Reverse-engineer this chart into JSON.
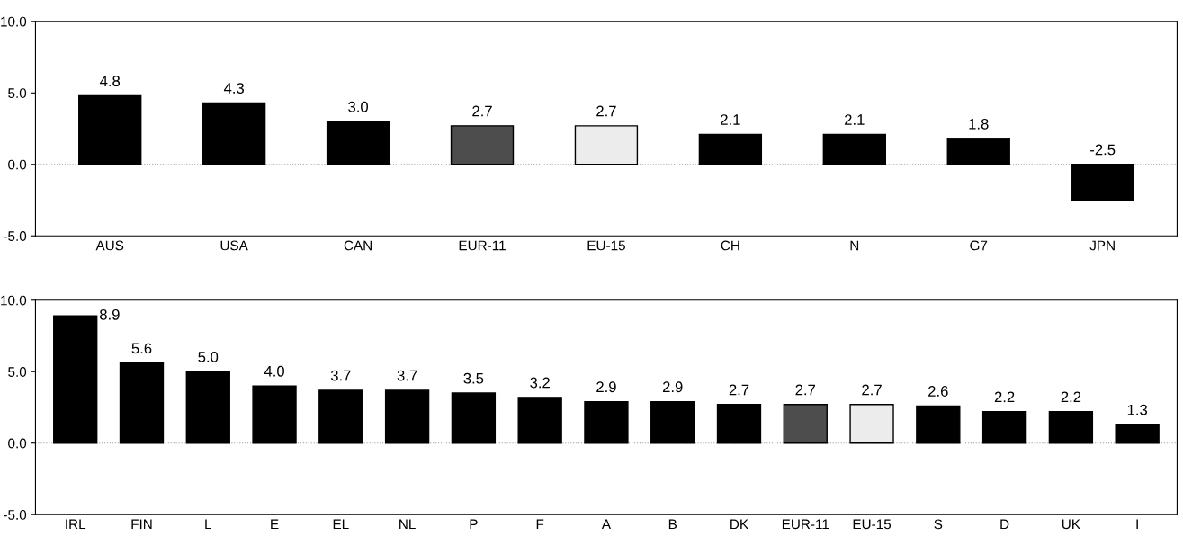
{
  "chart_data": [
    {
      "type": "bar",
      "categories": [
        "AUS",
        "USA",
        "CAN",
        "EUR-11",
        "EU-15",
        "CH",
        "N",
        "G7",
        "JPN"
      ],
      "values": [
        4.8,
        4.3,
        3.0,
        2.7,
        2.7,
        2.1,
        2.1,
        1.8,
        -2.5
      ],
      "colors": [
        "#000000",
        "#000000",
        "#000000",
        "#4d4d4d",
        "#ececec",
        "#000000",
        "#000000",
        "#000000",
        "#000000"
      ],
      "ylim": [
        -5,
        10
      ],
      "yticks": [
        {
          "value": -5,
          "label": "-5.0"
        },
        {
          "value": 0,
          "label": "0.0"
        },
        {
          "value": 5,
          "label": "5.0"
        },
        {
          "value": 10,
          "label": "10.0"
        }
      ],
      "value_labels": [
        "4.8",
        "4.3",
        "3.0",
        "2.7",
        "2.7",
        "2.1",
        "2.1",
        "1.8",
        "-2.5"
      ],
      "grid": false,
      "legend": false,
      "ref_lines": [
        {
          "axis": "y",
          "value": 0,
          "color": "#999999",
          "line_style": "dotted"
        }
      ]
    },
    {
      "type": "bar",
      "categories": [
        "IRL",
        "FIN",
        "L",
        "E",
        "EL",
        "NL",
        "P",
        "F",
        "A",
        "B",
        "DK",
        "EUR-11",
        "EU-15",
        "S",
        "D",
        "UK",
        "I"
      ],
      "values": [
        8.9,
        5.6,
        5.0,
        4.0,
        3.7,
        3.7,
        3.5,
        3.2,
        2.9,
        2.9,
        2.7,
        2.7,
        2.7,
        2.6,
        2.2,
        2.2,
        1.3
      ],
      "colors": [
        "#000000",
        "#000000",
        "#000000",
        "#000000",
        "#000000",
        "#000000",
        "#000000",
        "#000000",
        "#000000",
        "#000000",
        "#000000",
        "#4d4d4d",
        "#ececec",
        "#000000",
        "#000000",
        "#000000",
        "#000000"
      ],
      "ylim": [
        -5,
        10
      ],
      "yticks": [
        {
          "value": -5,
          "label": "-5.0"
        },
        {
          "value": 0,
          "label": "0.0"
        },
        {
          "value": 5,
          "label": "5.0"
        },
        {
          "value": 10,
          "label": "10.0"
        }
      ],
      "value_labels": [
        "8.9",
        "5.6",
        "5.0",
        "4.0",
        "3.7",
        "3.7",
        "3.5",
        "3.2",
        "2.9",
        "2.9",
        "2.7",
        "2.7",
        "2.7",
        "2.6",
        "2.2",
        "2.2",
        "1.3"
      ],
      "grid": false,
      "legend": false,
      "ref_lines": [
        {
          "axis": "y",
          "value": 0,
          "color": "#999999",
          "line_style": "dotted"
        }
      ]
    }
  ]
}
